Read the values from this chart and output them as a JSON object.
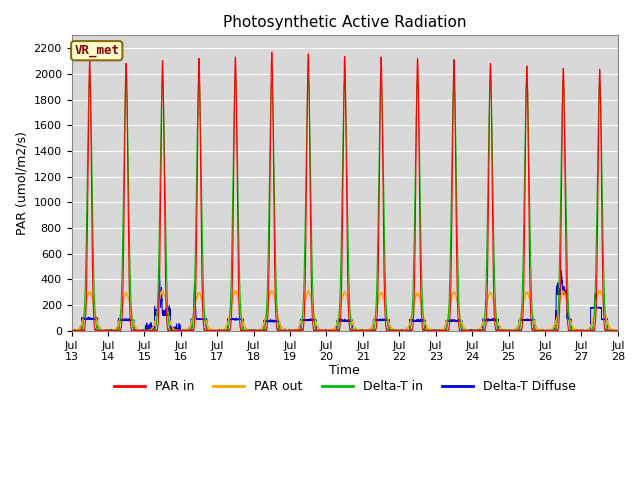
{
  "title": "Photosynthetic Active Radiation",
  "ylabel": "PAR (umol/m2/s)",
  "xlabel": "Time",
  "annotation": "VR_met",
  "ylim": [
    0,
    2300
  ],
  "yticks": [
    0,
    200,
    400,
    600,
    800,
    1000,
    1200,
    1400,
    1600,
    1800,
    2000,
    2200
  ],
  "xtick_labels": [
    "Jul\n13",
    "Jul\n14",
    "Jul\n15",
    "Jul\n16",
    "Jul\n17",
    "Jul\n18",
    "Jul\n19",
    "Jul\n20",
    "Jul\n21",
    "Jul\n22",
    "Jul\n23",
    "Jul\n24",
    "Jul\n25",
    "Jul\n26",
    "Jul\n27",
    "Jul\n28"
  ],
  "legend_items": [
    "PAR in",
    "PAR out",
    "Delta-T in",
    "Delta-T Diffuse"
  ],
  "legend_colors": [
    "#ff0000",
    "#ffa500",
    "#00bb00",
    "#0000dd"
  ],
  "fig_bg_color": "#ffffff",
  "plot_bg_color": "#d8d8d8",
  "grid_color": "#ffffff",
  "num_days": 15,
  "pts_per_day": 288,
  "par_in_peaks": [
    2100,
    2080,
    2100,
    2120,
    2130,
    2170,
    2160,
    2140,
    2130,
    2120,
    2110,
    2080,
    2060,
    2040,
    2030
  ],
  "par_out_peaks": [
    300,
    290,
    310,
    295,
    305,
    310,
    305,
    300,
    295,
    290,
    300,
    295,
    300,
    305,
    310
  ],
  "delta_t_in_peaks": [
    1980,
    1960,
    1970,
    1980,
    1980,
    1950,
    1970,
    1960,
    1950,
    1960,
    1980,
    1970,
    1960,
    1950,
    1940
  ],
  "delta_t_diffuse_base": [
    90,
    80,
    120,
    90,
    85,
    70,
    80,
    75,
    80,
    75,
    75,
    80,
    80,
    90,
    90
  ]
}
